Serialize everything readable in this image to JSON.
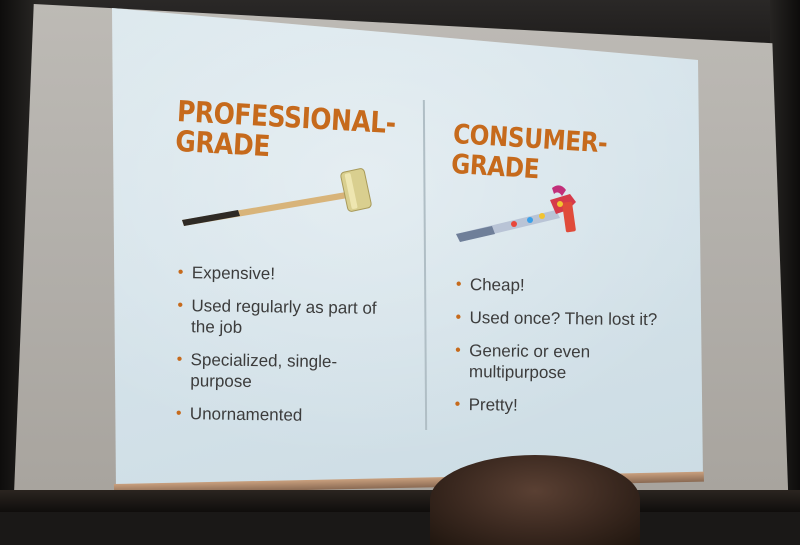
{
  "slide": {
    "left_column": {
      "heading_lines": [
        "PROFESSIONAL-",
        "GRADE"
      ],
      "image_icon": "sledgehammer-icon",
      "bullets": [
        "Expensive!",
        "Used regularly as part of the job",
        "Specialized, single-purpose",
        "Unornamented"
      ]
    },
    "right_column": {
      "heading_lines": [
        "CONSUMER-",
        "GRADE"
      ],
      "image_icon": "claw-hammer-icon",
      "bullets": [
        "Cheap!",
        "Used once? Then lost it?",
        "Generic or even multipurpose",
        "Pretty!"
      ]
    }
  },
  "colors": {
    "heading": "#c66a1c",
    "body_text": "#3c3c3c",
    "slide_background": "#d5e3ea"
  }
}
